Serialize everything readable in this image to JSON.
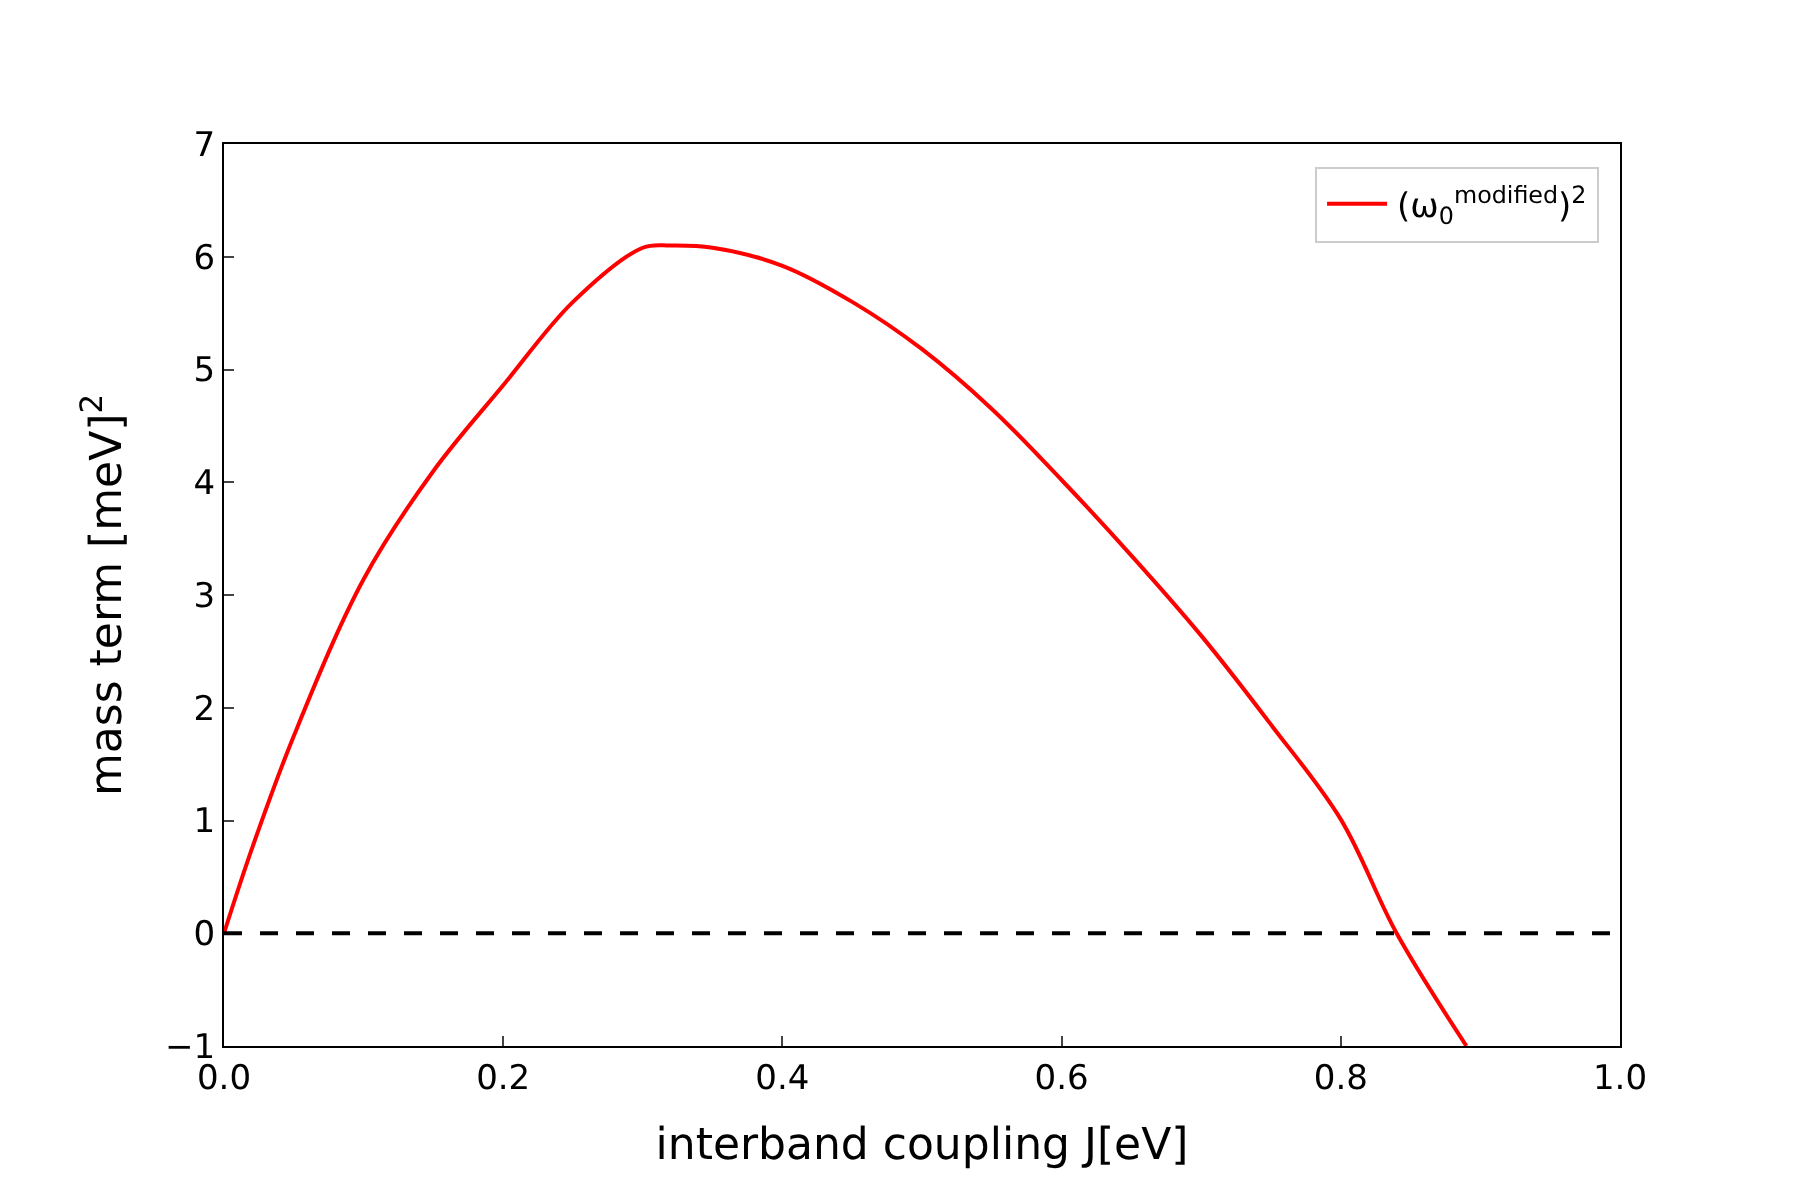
{
  "chart_data": {
    "type": "line",
    "xlabel": "interband coupling J[eV]",
    "ylabel": "mass term [meV]$^{2}$",
    "x": [
      0,
      0.02,
      0.05,
      0.1,
      0.15,
      0.2,
      0.25,
      0.3,
      0.32,
      0.35,
      0.4,
      0.45,
      0.5,
      0.55,
      0.6,
      0.65,
      0.7,
      0.75,
      0.8,
      0.84,
      0.89
    ],
    "series": [
      {
        "name": "(ω$_{0}$$^{modified}$)$^{2}$",
        "color": "#ff0000",
        "values": [
          0,
          0.75,
          1.75,
          3.14,
          4.1,
          4.86,
          5.6,
          6.08,
          6.1,
          6.08,
          5.92,
          5.6,
          5.18,
          4.65,
          4.02,
          3.35,
          2.64,
          1.85,
          1.01,
          0,
          -1.0
        ]
      }
    ],
    "xlim": [
      0,
      1
    ],
    "ylim": [
      -1,
      7
    ],
    "xticks": [
      {
        "value": 0,
        "label": "0.0"
      },
      0.2,
      0.4,
      0.6,
      0.8,
      {
        "value": 1,
        "label": "1.0"
      }
    ],
    "yticks": [
      {
        "value": -1,
        "label": "−1"
      },
      0,
      1,
      2,
      3,
      4,
      5,
      6,
      7
    ],
    "ref_lines": [
      {
        "axis": "y",
        "value": 0,
        "color": "#000000",
        "line_style": "dashed"
      }
    ],
    "legend": "top right",
    "marker": "none",
    "line_style": "solid"
  }
}
